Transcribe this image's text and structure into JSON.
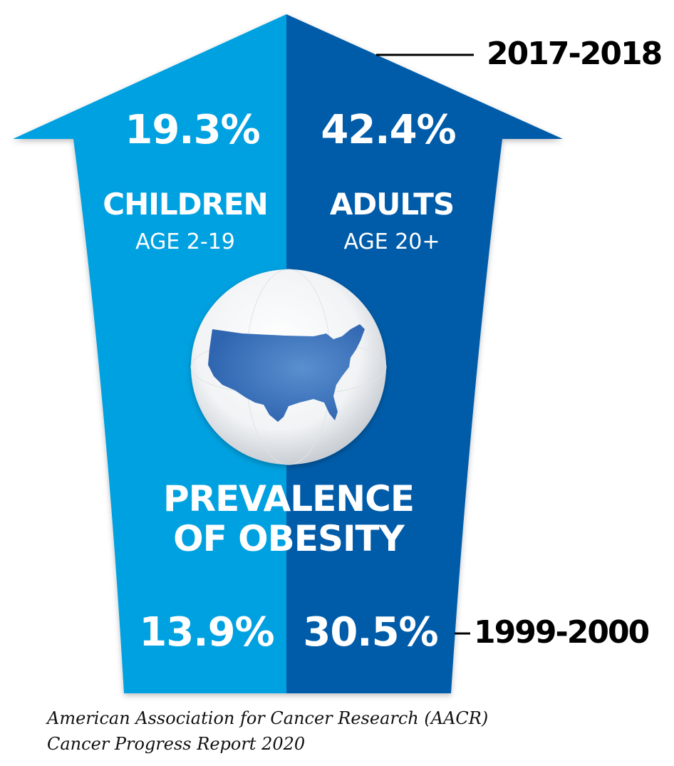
{
  "title": [
    "PREVALENCE",
    "OF OBESITY"
  ],
  "periods": {
    "recent": "2017-2018",
    "baseline": "1999-2000"
  },
  "groups": {
    "children": {
      "label": "CHILDREN",
      "age": "AGE 2-19",
      "recent": "19.3%",
      "baseline": "13.9%"
    },
    "adults": {
      "label": "ADULTS",
      "age": "AGE 20+",
      "recent": "42.4%",
      "baseline": "30.5%"
    }
  },
  "source": [
    "American Association for Cancer Research (AACR)",
    "Cancer Progress Report 2020"
  ],
  "colors": {
    "children": "#00a1e1",
    "adults": "#005ba9"
  }
}
